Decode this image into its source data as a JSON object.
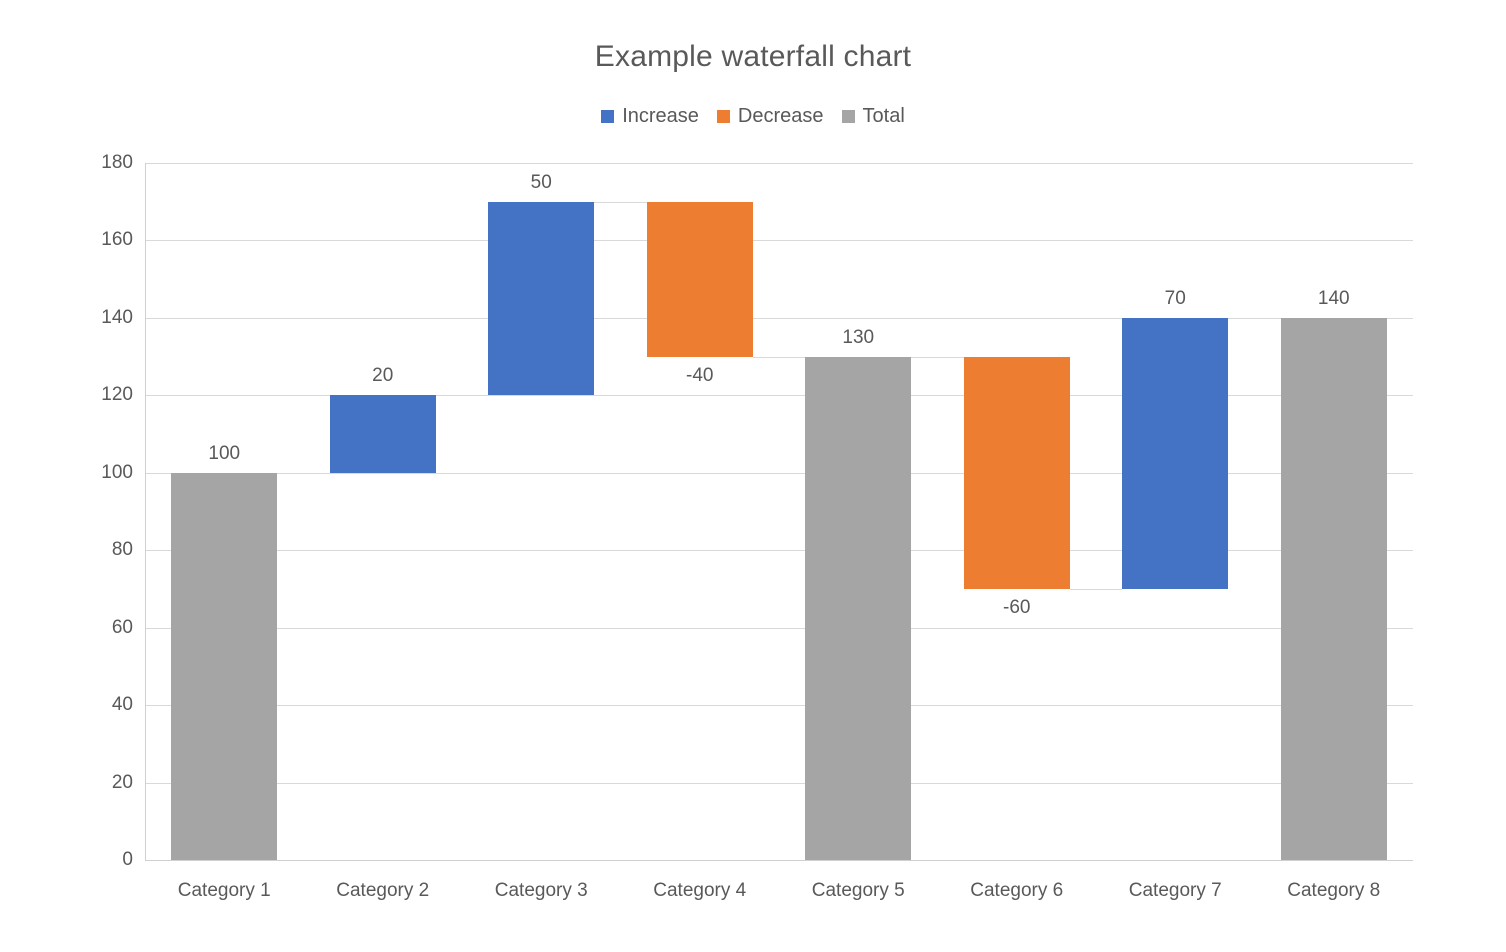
{
  "title": "Example waterfall chart",
  "chart_data": {
    "type": "bar",
    "subtype": "waterfall",
    "title": "Example waterfall chart",
    "xlabel": "",
    "ylabel": "",
    "ylim": [
      0,
      180
    ],
    "y_tick_step": 20,
    "y_ticks": [
      "0",
      "20",
      "40",
      "60",
      "80",
      "100",
      "120",
      "140",
      "160",
      "180"
    ],
    "grid": true,
    "legend_position": "top",
    "legend": [
      {
        "name": "legend-item-increase",
        "label": "Increase",
        "color": "#4472C4"
      },
      {
        "name": "legend-item-decrease",
        "label": "Decrease",
        "color": "#ED7D31"
      },
      {
        "name": "legend-item-total",
        "label": "Total",
        "color": "#A5A5A5"
      }
    ],
    "colors": {
      "increase": "#4472C4",
      "decrease": "#ED7D31",
      "total": "#A5A5A5"
    },
    "categories": [
      "Category 1",
      "Category 2",
      "Category 3",
      "Category 4",
      "Category 5",
      "Category 6",
      "Category 7",
      "Category 8"
    ],
    "bars": [
      {
        "category": "Category 1",
        "series": "total",
        "start": 0,
        "end": 100,
        "value": 100,
        "label": "100"
      },
      {
        "category": "Category 2",
        "series": "increase",
        "start": 100,
        "end": 120,
        "value": 20,
        "label": "20"
      },
      {
        "category": "Category 3",
        "series": "increase",
        "start": 120,
        "end": 170,
        "value": 50,
        "label": "50"
      },
      {
        "category": "Category 4",
        "series": "decrease",
        "start": 170,
        "end": 130,
        "value": -40,
        "label": "-40"
      },
      {
        "category": "Category 5",
        "series": "total",
        "start": 0,
        "end": 130,
        "value": 130,
        "label": "130"
      },
      {
        "category": "Category 6",
        "series": "decrease",
        "start": 130,
        "end": 70,
        "value": -60,
        "label": "-60"
      },
      {
        "category": "Category 7",
        "series": "increase",
        "start": 70,
        "end": 140,
        "value": 70,
        "label": "70"
      },
      {
        "category": "Category 8",
        "series": "total",
        "start": 0,
        "end": 140,
        "value": 140,
        "label": "140"
      }
    ]
  }
}
